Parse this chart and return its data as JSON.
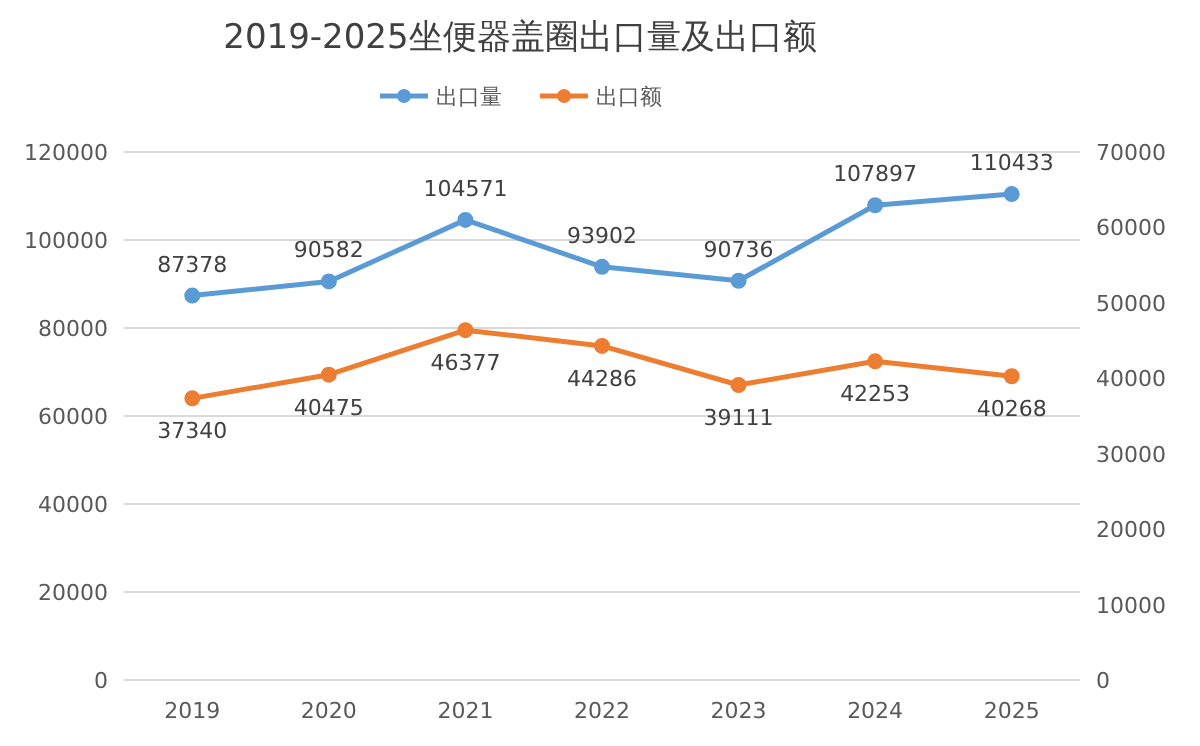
{
  "chart_data": {
    "type": "line",
    "title": "2019-2025坐便器盖圈出口量及出口额",
    "categories": [
      "2019",
      "2020",
      "2021",
      "2022",
      "2023",
      "2024",
      "2025"
    ],
    "series": [
      {
        "name": "出口量",
        "color": "#5b9bd5",
        "values": [
          87378,
          90582,
          104571,
          93902,
          90736,
          107897,
          110433
        ]
      },
      {
        "name": "出口额",
        "color": "#ed7d31",
        "axis": "y2",
        "values": [
          37340,
          40475,
          46377,
          44286,
          39111,
          42253,
          40268
        ]
      }
    ],
    "ylim": [
      0,
      120000
    ],
    "yticks": [
      0,
      20000,
      40000,
      60000,
      80000,
      100000,
      120000
    ],
    "y2lim": [
      0,
      70000
    ],
    "y2ticks": [
      0,
      10000,
      20000,
      30000,
      40000,
      50000,
      60000,
      70000
    ],
    "grid": "y",
    "legend": "top",
    "marker": "circle",
    "line_style": "solid",
    "data_labels": true
  }
}
